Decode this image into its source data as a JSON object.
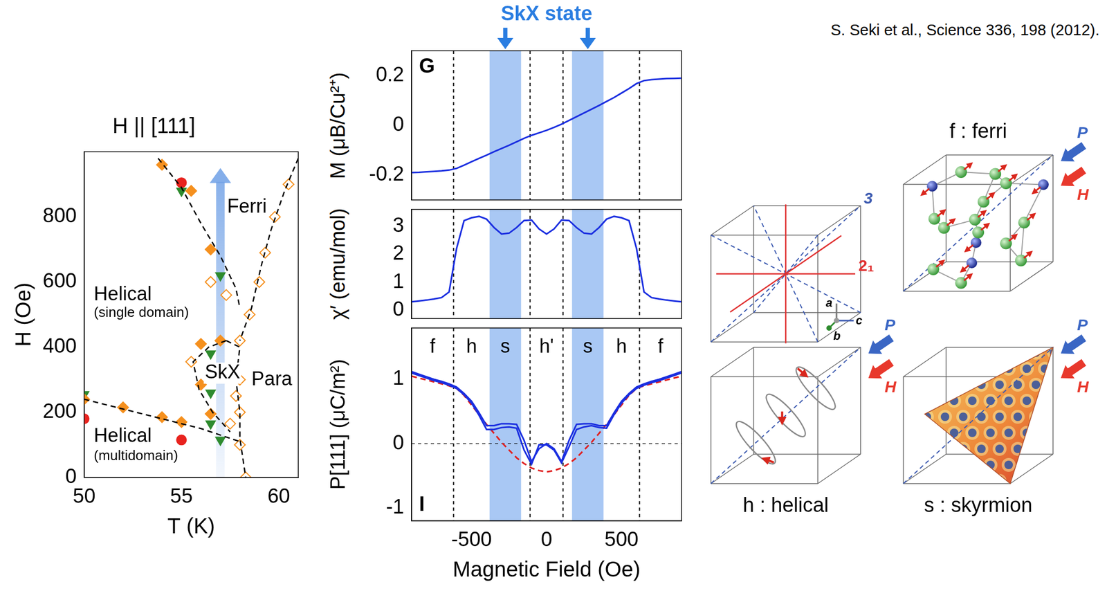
{
  "citation": "S. Seki et al., Science 336, 198 (2012).",
  "chart_data": [
    {
      "type": "scatter",
      "title": "H || [111]",
      "x_label": "T (K)",
      "y_label": "H (Oe)",
      "xlim": [
        50,
        61
      ],
      "xticks": [
        50,
        55,
        60
      ],
      "ylim": [
        0,
        1000
      ],
      "yticks": [
        0,
        200,
        400,
        600,
        800
      ],
      "grid": false,
      "arrow": {
        "x": 57,
        "y": [
          0,
          950
        ],
        "color": "#6fa0e6"
      },
      "series": [
        {
          "type": "line",
          "line_style": "dashed",
          "marker": "none",
          "color": "#000000",
          "x": [
            53.8,
            55,
            56,
            57,
            57.8,
            58
          ],
          "values": [
            980,
            890,
            780,
            680,
            580,
            520
          ]
        },
        {
          "type": "line",
          "line_style": "dashed",
          "marker": "none",
          "color": "#000000",
          "x": [
            61,
            60.3,
            59.6,
            59.1,
            58.6,
            58
          ],
          "values": [
            980,
            880,
            760,
            650,
            520,
            420
          ]
        },
        {
          "type": "line",
          "line_style": "dashed",
          "marker": "none",
          "color": "#000000",
          "x": [
            57.3,
            56.4,
            55.6,
            55.9,
            56.6,
            57.5
          ],
          "values": [
            420,
            400,
            355,
            270,
            200,
            140
          ]
        },
        {
          "type": "line",
          "line_style": "dashed",
          "marker": "none",
          "color": "#000000",
          "x": [
            57.3,
            58,
            57.8,
            58,
            58,
            58.3
          ],
          "values": [
            420,
            400,
            300,
            200,
            120,
            0
          ]
        },
        {
          "type": "line",
          "line_style": "dashed",
          "marker": "none",
          "color": "#000000",
          "x": [
            50,
            52,
            54,
            56,
            58
          ],
          "values": [
            240,
            210,
            180,
            150,
            110
          ]
        },
        {
          "type": "scatter",
          "marker": "open_diamond",
          "color": "#f5901e",
          "x": [
            60.5,
            59.8,
            59.3,
            59,
            58.5,
            58,
            55.5,
            58,
            57.8,
            58,
            57.5,
            58,
            58.3,
            56.5,
            57.3
          ],
          "values": [
            900,
            800,
            690,
            600,
            500,
            420,
            355,
            300,
            250,
            200,
            165,
            100,
            0,
            600,
            560
          ]
        },
        {
          "type": "scatter",
          "marker": "diamond",
          "color": "#f5901e",
          "x": [
            54,
            56.5,
            56,
            57,
            56,
            56.5,
            55,
            54,
            52,
            50,
            55.5
          ],
          "values": [
            960,
            700,
            410,
            420,
            285,
            195,
            170,
            185,
            215,
            240,
            880
          ]
        },
        {
          "type": "scatter",
          "marker": "triangle_down",
          "color": "#2e8b2e",
          "x": [
            55,
            57,
            56.5,
            56.5,
            56.5,
            57,
            50
          ],
          "values": [
            880,
            620,
            380,
            260,
            165,
            115,
            255
          ]
        },
        {
          "type": "scatter",
          "marker": "circle",
          "color": "#e8231e",
          "x": [
            55,
            50,
            55
          ],
          "values": [
            905,
            180,
            115
          ]
        }
      ],
      "annotations": [
        {
          "text": "Ferri",
          "x": 57.35,
          "y": 830
        },
        {
          "text": "Helical",
          "x": 50.5,
          "y": 560
        },
        {
          "text": "(single domain)",
          "x": 50.5,
          "y": 505
        },
        {
          "text": "SkX",
          "x": 56.2,
          "y": 320
        },
        {
          "text": "Para",
          "x": 58.6,
          "y": 300
        },
        {
          "text": "Helical",
          "x": 50.5,
          "y": 125
        },
        {
          "text": "(multidomain)",
          "x": 50.5,
          "y": 65
        }
      ]
    },
    {
      "type": "line",
      "panel": "G",
      "header": "SkX state",
      "y_label": "M (μB/Cu²⁺)",
      "xlim": [
        -900,
        900
      ],
      "ylim": [
        -0.3,
        0.3
      ],
      "yticks": [
        -0.2,
        0,
        0.2
      ],
      "tick_labels": "y",
      "grid": false,
      "bands": [
        [
          -380,
          -170
        ],
        [
          170,
          380
        ]
      ],
      "vlines": [
        -620,
        -110,
        110,
        620
      ],
      "x": [
        -900,
        -850,
        -800,
        -750,
        -700,
        -650,
        -600,
        -550,
        -500,
        -450,
        -400,
        -350,
        -300,
        -250,
        -200,
        -150,
        -100,
        -50,
        0,
        50,
        100,
        150,
        200,
        250,
        300,
        350,
        400,
        450,
        500,
        550,
        600,
        650,
        700,
        750,
        800,
        850,
        900
      ],
      "series": [
        {
          "color": "#1a2ee0",
          "values": [
            -0.19,
            -0.189,
            -0.187,
            -0.185,
            -0.183,
            -0.18,
            -0.173,
            -0.16,
            -0.146,
            -0.133,
            -0.12,
            -0.106,
            -0.093,
            -0.08,
            -0.066,
            -0.052,
            -0.04,
            -0.03,
            -0.02,
            -0.008,
            0.005,
            0.02,
            0.035,
            0.05,
            0.065,
            0.08,
            0.096,
            0.112,
            0.13,
            0.148,
            0.168,
            0.18,
            0.184,
            0.186,
            0.188,
            0.189,
            0.19
          ]
        }
      ]
    },
    {
      "type": "line",
      "y_label": "χ′ (emu/mol)",
      "xlim": [
        -900,
        900
      ],
      "ylim": [
        -0.3,
        3.6
      ],
      "yticks": [
        0,
        1,
        2,
        3
      ],
      "tick_labels": "y",
      "grid": false,
      "bands": [
        [
          -380,
          -170
        ],
        [
          170,
          380
        ]
      ],
      "vlines": [
        -620,
        -110,
        110,
        620
      ],
      "x": [
        -900,
        -850,
        -800,
        -750,
        -700,
        -650,
        -600,
        -550,
        -500,
        -450,
        -400,
        -350,
        -300,
        -250,
        -200,
        -150,
        -100,
        -50,
        0,
        50,
        100,
        150,
        200,
        250,
        300,
        350,
        400,
        450,
        500,
        550,
        600,
        650,
        700,
        750,
        800,
        850,
        900
      ],
      "series": [
        {
          "color": "#1a2ee0",
          "values": [
            0.3,
            0.33,
            0.36,
            0.4,
            0.45,
            0.65,
            2.2,
            3.2,
            3.3,
            3.35,
            3.25,
            2.95,
            2.72,
            2.75,
            2.95,
            3.2,
            3.22,
            2.9,
            2.72,
            2.9,
            3.22,
            3.2,
            2.95,
            2.75,
            2.72,
            2.95,
            3.25,
            3.35,
            3.3,
            3.2,
            2.2,
            0.65,
            0.45,
            0.4,
            0.36,
            0.33,
            0.3
          ]
        }
      ]
    },
    {
      "type": "line",
      "panel": "I",
      "x_label": "Magnetic Field (Oe)",
      "y_label": "P[111] (μC/m²)",
      "xlim": [
        -900,
        900
      ],
      "xticks": [
        -500,
        0,
        500
      ],
      "ylim": [
        -1.2,
        1.8
      ],
      "yticks": [
        -1,
        0,
        1
      ],
      "grid": false,
      "bands": [
        [
          -380,
          -170
        ],
        [
          170,
          380
        ]
      ],
      "vlines": [
        -620,
        -110,
        110,
        620
      ],
      "hlines": [
        0
      ],
      "annotations": [
        {
          "text": "f",
          "x": -760,
          "y": 1.5
        },
        {
          "text": "h",
          "x": -500,
          "y": 1.5
        },
        {
          "text": "s",
          "x": -275,
          "y": 1.5
        },
        {
          "text": "h'",
          "x": 0,
          "y": 1.5
        },
        {
          "text": "s",
          "x": 275,
          "y": 1.5
        },
        {
          "text": "h",
          "x": 500,
          "y": 1.5
        },
        {
          "text": "f",
          "x": 760,
          "y": 1.5
        }
      ],
      "x": [
        -900,
        -850,
        -800,
        -750,
        -700,
        -650,
        -600,
        -550,
        -500,
        -450,
        -400,
        -350,
        -300,
        -250,
        -200,
        -150,
        -100,
        -50,
        0,
        50,
        100,
        150,
        200,
        250,
        300,
        350,
        400,
        450,
        500,
        550,
        600,
        650,
        700,
        750,
        800,
        850,
        900
      ],
      "series": [
        {
          "color": "#1a2ee0",
          "line_style": "solid",
          "values": [
            1.12,
            1.08,
            1.04,
            1.0,
            0.97,
            0.93,
            0.88,
            0.78,
            0.66,
            0.48,
            0.28,
            0.28,
            0.31,
            0.31,
            0.3,
            0.05,
            -0.28,
            -0.08,
            0.0,
            -0.08,
            -0.28,
            0.05,
            0.3,
            0.31,
            0.31,
            0.28,
            0.28,
            0.48,
            0.66,
            0.78,
            0.88,
            0.93,
            0.97,
            1.0,
            1.04,
            1.08,
            1.12
          ]
        },
        {
          "color": "#1a2ee0",
          "line_style": "solid",
          "values": [
            1.1,
            1.06,
            1.02,
            0.98,
            0.95,
            0.91,
            0.86,
            0.76,
            0.63,
            0.44,
            0.22,
            0.22,
            0.25,
            0.26,
            0.24,
            -0.1,
            -0.32,
            -0.02,
            -0.02,
            -0.1,
            -0.3,
            -0.05,
            0.22,
            0.26,
            0.28,
            0.25,
            0.24,
            0.45,
            0.63,
            0.76,
            0.86,
            0.91,
            0.95,
            0.98,
            1.02,
            1.06,
            1.1
          ]
        },
        {
          "color": "#e02020",
          "line_style": "dashed",
          "values": [
            1.05,
            1.02,
            0.99,
            0.96,
            0.93,
            0.9,
            0.86,
            0.75,
            0.6,
            0.45,
            0.3,
            0.16,
            0.02,
            -0.1,
            -0.22,
            -0.31,
            -0.38,
            -0.42,
            -0.44,
            -0.42,
            -0.38,
            -0.31,
            -0.22,
            -0.1,
            0.02,
            0.16,
            0.3,
            0.45,
            0.6,
            0.75,
            0.86,
            0.9,
            0.93,
            0.96,
            0.99,
            1.02,
            1.05
          ]
        }
      ]
    }
  ],
  "diagrams": {
    "symmetry_axes": {
      "threefold": "3",
      "twofold": "2₁"
    },
    "crystal_axes": {
      "a": "a",
      "b": "b",
      "c": "c"
    },
    "polarization": "P",
    "field": "H",
    "labels": {
      "ferri": "f : ferri",
      "helical": "h : helical",
      "skyrmion": "s : skyrmion"
    }
  }
}
